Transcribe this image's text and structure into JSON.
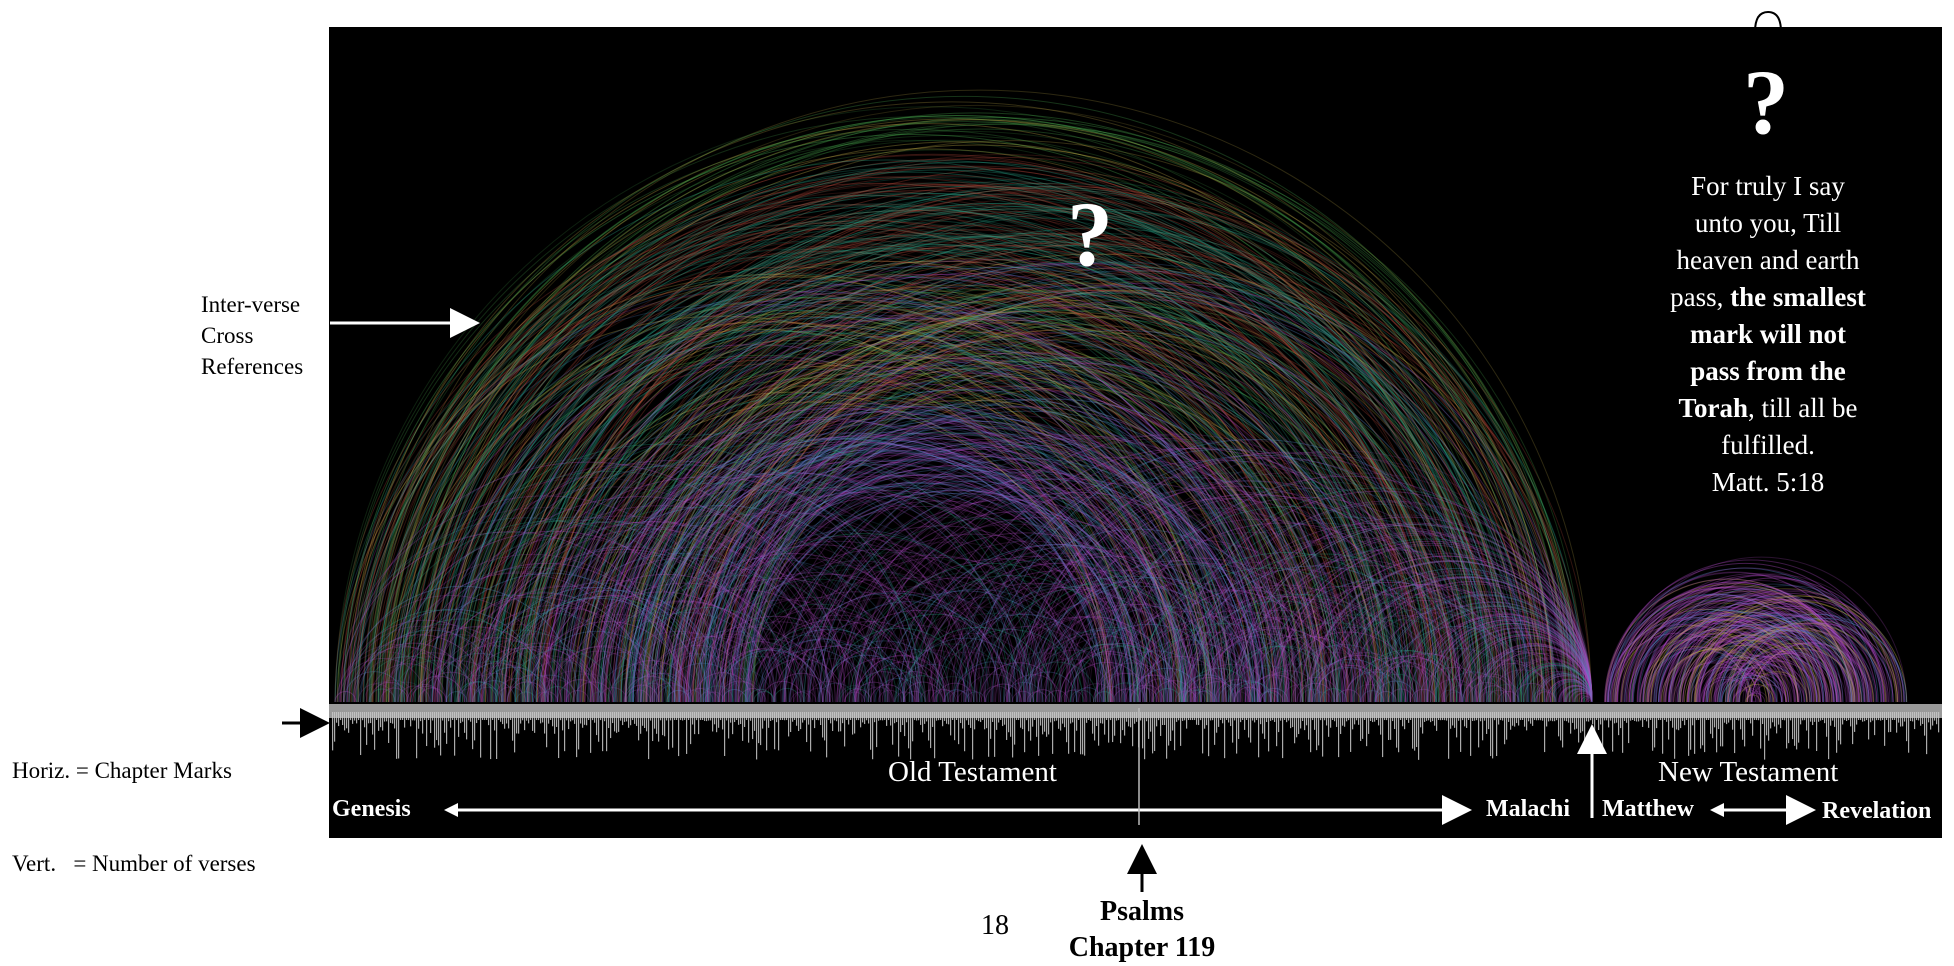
{
  "left_labels": {
    "cross_refs": [
      "Inter-verse",
      "Cross",
      "References"
    ],
    "chart_marks": [
      "Horiz. = Chapter Marks",
      "Vert.   = Number of verses"
    ]
  },
  "question_marks": [
    "?",
    "?"
  ],
  "quote": {
    "line1": "For truly I say",
    "line2": "unto you, Till",
    "line3": "heaven and earth",
    "line4_prefix": "pass, ",
    "line4_bold": "the smallest",
    "line5_bold": "mark will not",
    "line6_bold": "pass from the",
    "line7_bold": "Torah",
    "line7_rest": ", till all be",
    "line8": "fulfilled.",
    "reference": "Matt. 5:18"
  },
  "testaments": {
    "old": "Old Testament",
    "new": "New Testament"
  },
  "books": {
    "first_ot": "Genesis",
    "last_ot": "Malachi",
    "first_nt": "Matthew",
    "last_nt": "Revelation"
  },
  "callout": {
    "book": "Psalms",
    "chapter": "Chapter 119"
  },
  "page_number": "18",
  "colors": {
    "background": "#000000",
    "arc_green": "#4caf50",
    "arc_yellow": "#c8b24a",
    "arc_red": "#b84a3c",
    "arc_teal": "#2aa68a",
    "arc_blue": "#5a8fd6",
    "arc_magenta": "#b24bc8",
    "bars": "#c8c8c8"
  }
}
